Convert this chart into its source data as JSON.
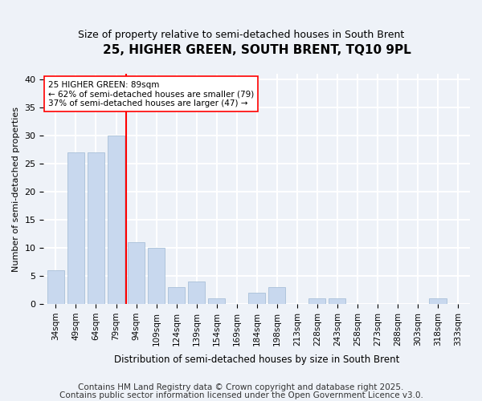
{
  "title": "25, HIGHER GREEN, SOUTH BRENT, TQ10 9PL",
  "subtitle": "Size of property relative to semi-detached houses in South Brent",
  "xlabel": "Distribution of semi-detached houses by size in South Brent",
  "ylabel": "Number of semi-detached properties",
  "categories": [
    "34sqm",
    "49sqm",
    "64sqm",
    "79sqm",
    "94sqm",
    "109sqm",
    "124sqm",
    "139sqm",
    "154sqm",
    "169sqm",
    "184sqm",
    "198sqm",
    "213sqm",
    "228sqm",
    "243sqm",
    "258sqm",
    "273sqm",
    "288sqm",
    "303sqm",
    "318sqm",
    "333sqm"
  ],
  "values": [
    6,
    27,
    27,
    30,
    11,
    10,
    3,
    4,
    1,
    0,
    2,
    3,
    0,
    1,
    1,
    0,
    0,
    0,
    0,
    1,
    0
  ],
  "bar_color": "#c8d8ee",
  "bar_edge_color": "#a8c0d8",
  "vline_x": 4.0,
  "vline_color": "red",
  "annotation_text": "25 HIGHER GREEN: 89sqm\n← 62% of semi-detached houses are smaller (79)\n37% of semi-detached houses are larger (47) →",
  "annotation_box_color": "white",
  "annotation_box_edge_color": "red",
  "ylim": [
    0,
    41
  ],
  "yticks": [
    0,
    5,
    10,
    15,
    20,
    25,
    30,
    35,
    40
  ],
  "footnote1": "Contains HM Land Registry data © Crown copyright and database right 2025.",
  "footnote2": "Contains public sector information licensed under the Open Government Licence v3.0.",
  "bg_color": "#eef2f8",
  "plot_bg_color": "#eef2f8",
  "grid_color": "white",
  "title_fontsize": 11,
  "subtitle_fontsize": 9,
  "footnote_fontsize": 7.5
}
